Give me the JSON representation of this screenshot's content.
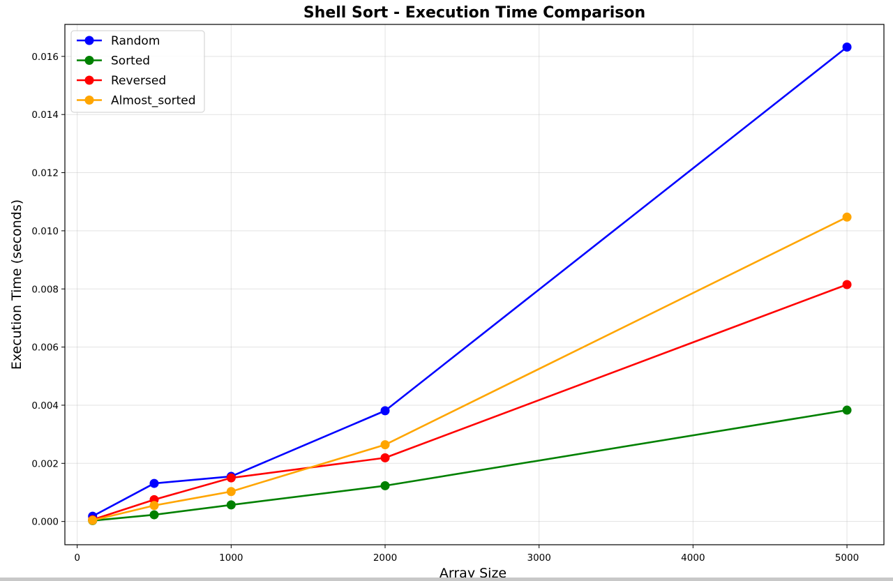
{
  "chart_data": {
    "type": "line",
    "title": "Shell Sort - Execution Time Comparison",
    "xlabel": "Array Size",
    "ylabel": "Execution Time (seconds)",
    "x": [
      100,
      500,
      1000,
      2000,
      5000
    ],
    "xlim": [
      -80,
      5240
    ],
    "ylim": [
      -0.0008,
      0.0171
    ],
    "xticks": [
      0,
      1000,
      2000,
      3000,
      4000,
      5000
    ],
    "xtick_labels": [
      "0",
      "1000",
      "2000",
      "3000",
      "4000",
      "5000"
    ],
    "yticks": [
      0,
      0.002,
      0.004,
      0.006,
      0.008,
      0.01,
      0.012,
      0.014,
      0.016
    ],
    "ytick_labels": [
      "0.000",
      "0.002",
      "0.004",
      "0.006",
      "0.008",
      "0.010",
      "0.012",
      "0.014",
      "0.016"
    ],
    "grid": true,
    "legend_position": "top-left",
    "series": [
      {
        "name": "Random",
        "color": "#0000ff",
        "values": [
          0.00018,
          0.00131,
          0.00155,
          0.00381,
          0.01632
        ]
      },
      {
        "name": "Sorted",
        "color": "#008000",
        "values": [
          3e-05,
          0.00023,
          0.00057,
          0.00123,
          0.00383
        ]
      },
      {
        "name": "Reversed",
        "color": "#ff0000",
        "values": [
          6e-05,
          0.00075,
          0.0015,
          0.00219,
          0.00815
        ]
      },
      {
        "name": "Almost_sorted",
        "color": "#ffa500",
        "values": [
          4e-05,
          0.00055,
          0.00103,
          0.00264,
          0.01047
        ]
      }
    ]
  }
}
